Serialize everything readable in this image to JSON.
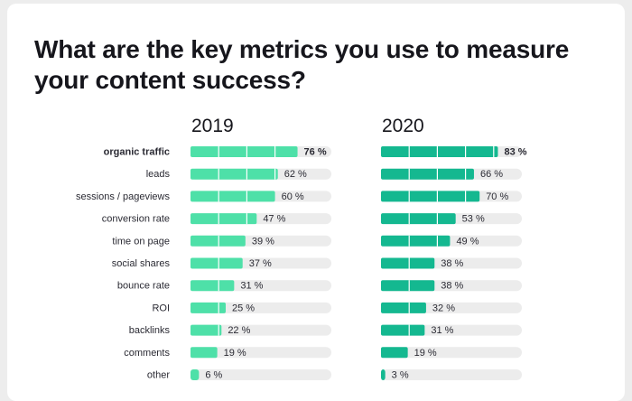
{
  "title": "What are the key metrics you use to measure your content success?",
  "colors": {
    "bar_2019": "#4ee0a8",
    "bar_2020": "#14b890",
    "track": "#ececec",
    "background": "#ffffff"
  },
  "chart_data": {
    "type": "bar",
    "orientation": "horizontal",
    "title": "What are the key metrics you use to measure your content success?",
    "categories": [
      "organic traffic",
      "leads",
      "sessions / pageviews",
      "conversion rate",
      "time on page",
      "social shares",
      "bounce rate",
      "ROI",
      "backlinks",
      "comments",
      "other"
    ],
    "highlight_category": "organic traffic",
    "series": [
      {
        "name": "2019",
        "values": [
          76,
          62,
          60,
          47,
          39,
          37,
          31,
          25,
          22,
          19,
          6
        ]
      },
      {
        "name": "2020",
        "values": [
          83,
          66,
          70,
          53,
          49,
          38,
          38,
          32,
          31,
          19,
          3
        ]
      }
    ],
    "value_suffix": " %",
    "xlim": [
      0,
      100
    ],
    "xlabel": "",
    "ylabel": "",
    "grid": false
  }
}
